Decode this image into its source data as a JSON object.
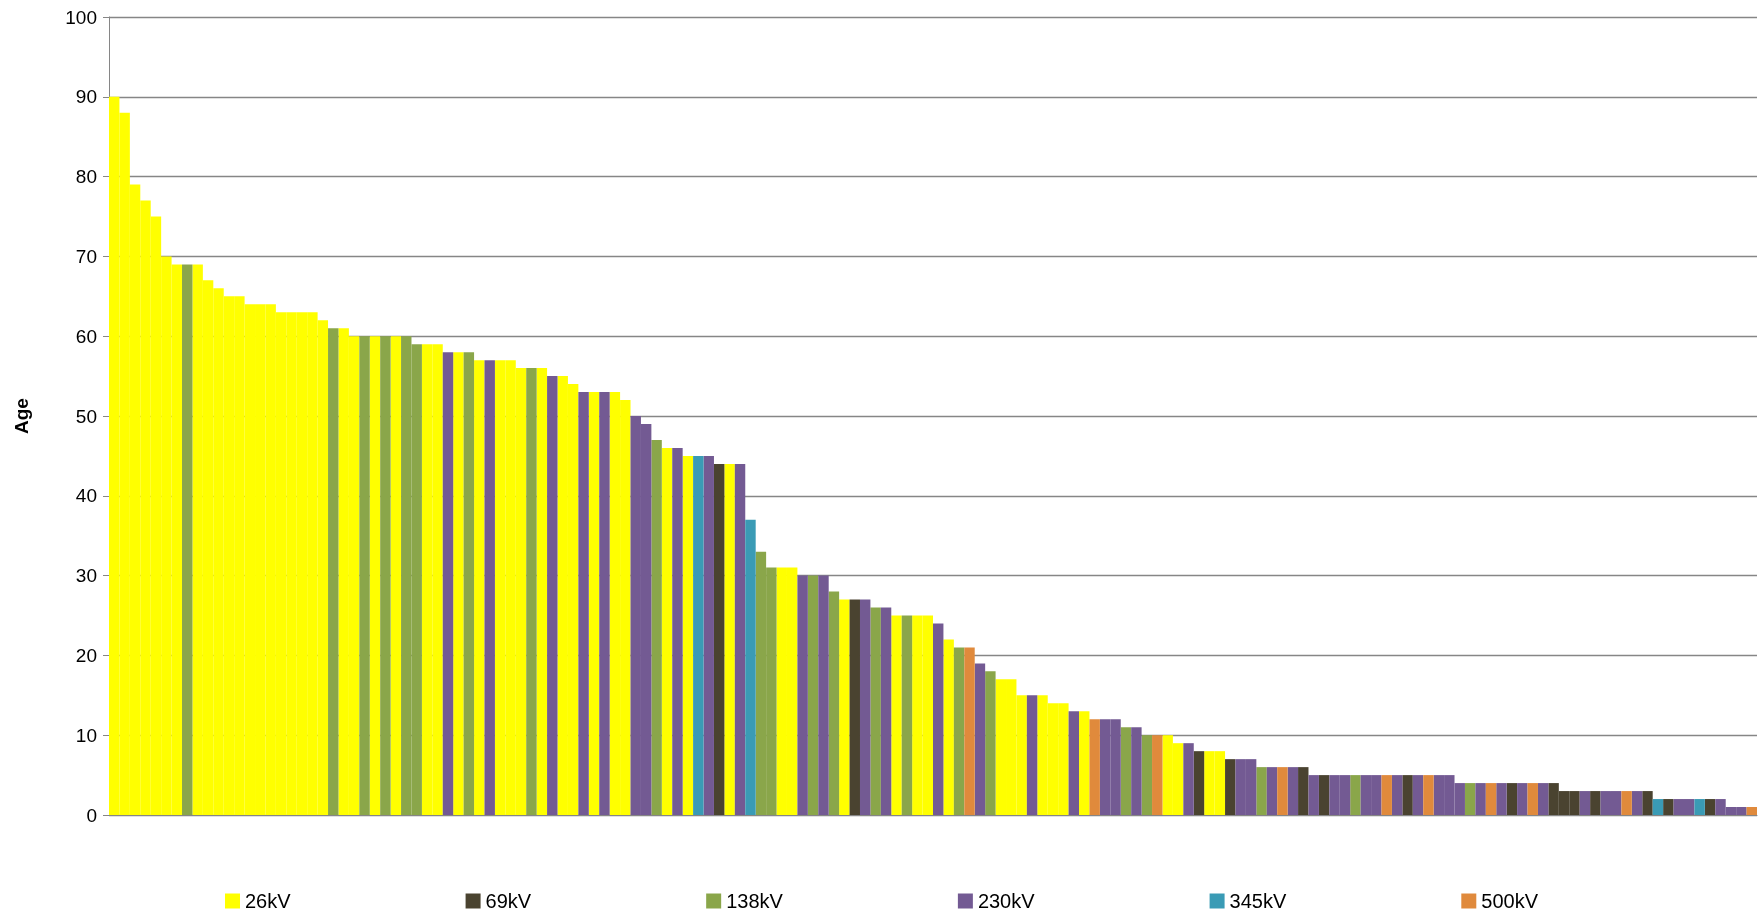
{
  "chart_data": {
    "type": "bar",
    "ylabel": "Age",
    "ylim": [
      0,
      100
    ],
    "yticks": [
      0,
      10,
      20,
      30,
      40,
      50,
      60,
      70,
      80,
      90,
      100
    ],
    "grid": "y",
    "legend": "bottom",
    "categories": [
      null,
      null,
      null,
      null,
      null,
      null,
      null,
      null,
      null,
      null,
      null,
      null,
      null,
      null,
      null,
      null,
      null,
      null,
      null,
      null,
      null,
      null,
      null,
      null,
      null,
      null,
      null,
      null,
      null,
      null,
      null,
      null,
      null,
      null,
      null,
      null,
      null,
      null,
      null,
      null,
      null,
      null,
      null,
      null,
      null,
      null,
      null,
      null,
      null,
      null,
      null,
      null,
      null,
      null,
      null,
      null,
      null,
      null,
      null,
      null,
      null,
      null,
      null,
      null,
      null,
      null,
      null,
      null,
      null,
      null,
      null,
      null,
      null,
      null,
      null,
      null,
      null,
      null,
      null,
      null,
      null,
      null,
      null,
      null,
      null,
      null,
      null,
      null,
      null,
      null,
      null,
      null,
      null,
      null,
      null,
      null,
      null,
      null,
      null,
      null,
      null,
      null,
      null,
      null,
      null,
      null,
      null,
      null,
      null,
      null,
      null,
      null,
      null,
      null,
      null,
      null,
      null,
      null,
      null,
      null,
      null,
      null,
      null,
      null,
      null,
      null,
      null,
      null,
      null,
      null,
      null,
      null,
      null,
      null,
      null,
      null,
      null,
      null,
      null,
      null,
      null,
      null,
      null,
      null,
      null,
      null,
      null,
      null,
      null,
      null,
      null,
      null,
      null,
      null,
      null,
      null,
      null,
      null
    ],
    "series": [
      {
        "name": "26kV",
        "color": "#ffff00",
        "values": [
          90,
          88,
          79,
          77,
          75,
          70,
          69,
          null,
          69,
          67,
          66,
          65,
          65,
          64,
          64,
          64,
          63,
          63,
          63,
          63,
          62,
          null,
          61,
          60,
          null,
          60,
          null,
          60,
          null,
          null,
          59,
          59,
          null,
          58,
          null,
          57,
          null,
          57,
          57,
          56,
          null,
          56,
          null,
          55,
          54,
          null,
          53,
          null,
          53,
          52,
          null,
          null,
          null,
          46,
          null,
          45,
          null,
          null,
          null,
          44,
          null,
          null,
          null,
          null,
          31,
          31,
          null,
          null,
          null,
          null,
          27,
          null,
          null,
          null,
          null,
          25,
          null,
          25,
          25,
          null,
          22,
          null,
          null,
          null,
          null,
          17,
          17,
          15,
          null,
          15,
          14,
          14,
          null,
          13,
          null,
          null,
          null,
          null,
          null,
          null,
          null,
          10,
          9,
          null,
          null,
          8,
          8,
          null,
          null,
          null,
          null,
          null,
          null,
          null,
          null,
          null,
          null,
          null,
          null,
          null,
          null,
          null,
          null,
          null,
          null,
          null,
          null,
          null,
          null,
          null,
          null,
          null,
          null,
          null,
          null,
          null,
          null,
          null,
          null,
          null,
          null,
          null,
          null,
          null,
          null,
          null,
          null,
          null,
          null,
          null,
          null,
          null,
          null,
          null,
          null,
          null,
          null,
          null
        ]
      },
      {
        "name": "69kV",
        "color": "#4a4330",
        "values": [
          null,
          null,
          null,
          null,
          null,
          null,
          null,
          null,
          null,
          null,
          null,
          null,
          null,
          null,
          null,
          null,
          null,
          null,
          null,
          null,
          null,
          null,
          null,
          null,
          null,
          null,
          null,
          null,
          null,
          null,
          null,
          null,
          null,
          null,
          null,
          null,
          null,
          null,
          null,
          null,
          null,
          null,
          null,
          null,
          null,
          null,
          null,
          null,
          null,
          null,
          null,
          null,
          null,
          null,
          null,
          null,
          null,
          null,
          44,
          null,
          null,
          null,
          null,
          null,
          null,
          null,
          null,
          null,
          null,
          null,
          null,
          27,
          null,
          null,
          null,
          null,
          null,
          null,
          null,
          null,
          null,
          null,
          null,
          null,
          null,
          null,
          null,
          null,
          null,
          null,
          null,
          null,
          null,
          null,
          null,
          null,
          null,
          null,
          null,
          null,
          null,
          null,
          null,
          null,
          8,
          null,
          null,
          7,
          null,
          null,
          null,
          null,
          null,
          null,
          6,
          null,
          5,
          null,
          null,
          null,
          null,
          null,
          null,
          null,
          5,
          null,
          null,
          null,
          null,
          null,
          null,
          null,
          null,
          null,
          4,
          null,
          null,
          null,
          4,
          3,
          3,
          null,
          3,
          null,
          null,
          null,
          null,
          3,
          null,
          2,
          null,
          null,
          null,
          2,
          null,
          null,
          null,
          null
        ]
      },
      {
        "name": "138kV",
        "color": "#8aa64a",
        "values": [
          null,
          null,
          null,
          null,
          null,
          null,
          null,
          69,
          null,
          null,
          null,
          null,
          null,
          null,
          null,
          null,
          null,
          null,
          null,
          null,
          null,
          61,
          null,
          null,
          60,
          null,
          60,
          null,
          60,
          59,
          null,
          null,
          null,
          null,
          58,
          null,
          null,
          null,
          null,
          null,
          56,
          null,
          null,
          null,
          null,
          null,
          null,
          null,
          null,
          null,
          null,
          null,
          47,
          null,
          null,
          null,
          null,
          null,
          null,
          null,
          null,
          null,
          33,
          31,
          null,
          null,
          null,
          30,
          null,
          28,
          null,
          null,
          null,
          26,
          null,
          null,
          25,
          null,
          null,
          null,
          null,
          21,
          null,
          null,
          18,
          null,
          null,
          null,
          null,
          null,
          null,
          null,
          null,
          null,
          null,
          null,
          null,
          11,
          null,
          10,
          null,
          null,
          null,
          null,
          null,
          null,
          null,
          null,
          null,
          null,
          6,
          null,
          null,
          null,
          null,
          null,
          null,
          null,
          null,
          5,
          null,
          null,
          null,
          null,
          null,
          null,
          null,
          null,
          null,
          null,
          4,
          null,
          null,
          null,
          null,
          null,
          null,
          null,
          null,
          null,
          null,
          null,
          null,
          null,
          null,
          null,
          null,
          null,
          null,
          null,
          null,
          null,
          null,
          null,
          null,
          null,
          null,
          null
        ]
      },
      {
        "name": "230kV",
        "color": "#735a93",
        "values": [
          null,
          null,
          null,
          null,
          null,
          null,
          null,
          null,
          null,
          null,
          null,
          null,
          null,
          null,
          null,
          null,
          null,
          null,
          null,
          null,
          null,
          null,
          null,
          null,
          null,
          null,
          null,
          null,
          null,
          null,
          null,
          null,
          58,
          null,
          null,
          null,
          57,
          null,
          null,
          null,
          null,
          null,
          55,
          null,
          null,
          53,
          null,
          53,
          null,
          null,
          50,
          49,
          null,
          null,
          46,
          null,
          null,
          45,
          null,
          null,
          44,
          null,
          null,
          null,
          null,
          null,
          30,
          null,
          30,
          null,
          null,
          null,
          27,
          null,
          26,
          null,
          null,
          null,
          null,
          24,
          null,
          null,
          null,
          19,
          null,
          null,
          null,
          null,
          15,
          null,
          null,
          null,
          13,
          null,
          null,
          12,
          12,
          null,
          11,
          null,
          null,
          null,
          null,
          9,
          null,
          null,
          null,
          null,
          7,
          7,
          null,
          6,
          null,
          6,
          null,
          5,
          null,
          5,
          5,
          null,
          5,
          5,
          null,
          5,
          null,
          5,
          null,
          5,
          5,
          4,
          null,
          4,
          null,
          4,
          null,
          4,
          null,
          4,
          null,
          null,
          null,
          3,
          null,
          3,
          3,
          null,
          3,
          null,
          null,
          null,
          2,
          2,
          null,
          null,
          2,
          1,
          1,
          null
        ]
      },
      {
        "name": "345kV",
        "color": "#3a9bb5",
        "values": [
          null,
          null,
          null,
          null,
          null,
          null,
          null,
          null,
          null,
          null,
          null,
          null,
          null,
          null,
          null,
          null,
          null,
          null,
          null,
          null,
          null,
          null,
          null,
          null,
          null,
          null,
          null,
          null,
          null,
          null,
          null,
          null,
          null,
          null,
          null,
          null,
          null,
          null,
          null,
          null,
          null,
          null,
          null,
          null,
          null,
          null,
          null,
          null,
          null,
          null,
          null,
          null,
          null,
          null,
          null,
          null,
          45,
          null,
          null,
          null,
          null,
          37,
          null,
          null,
          null,
          null,
          null,
          null,
          null,
          null,
          null,
          null,
          null,
          null,
          null,
          null,
          null,
          null,
          null,
          null,
          null,
          null,
          null,
          null,
          null,
          null,
          null,
          null,
          null,
          null,
          null,
          null,
          null,
          null,
          null,
          null,
          null,
          null,
          null,
          null,
          null,
          null,
          null,
          null,
          null,
          null,
          null,
          null,
          null,
          null,
          null,
          null,
          null,
          null,
          null,
          null,
          null,
          null,
          null,
          null,
          null,
          null,
          null,
          null,
          null,
          null,
          null,
          null,
          null,
          null,
          null,
          null,
          null,
          null,
          null,
          null,
          null,
          null,
          null,
          null,
          null,
          null,
          null,
          null,
          null,
          null,
          null,
          null,
          2,
          null,
          null,
          null,
          2,
          null,
          null,
          null,
          null,
          null
        ]
      },
      {
        "name": "500kV",
        "color": "#e08a3c",
        "values": [
          null,
          null,
          null,
          null,
          null,
          null,
          null,
          null,
          null,
          null,
          null,
          null,
          null,
          null,
          null,
          null,
          null,
          null,
          null,
          null,
          null,
          null,
          null,
          null,
          null,
          null,
          null,
          null,
          null,
          null,
          null,
          null,
          null,
          null,
          null,
          null,
          null,
          null,
          null,
          null,
          null,
          null,
          null,
          null,
          null,
          null,
          null,
          null,
          null,
          null,
          null,
          null,
          null,
          null,
          null,
          null,
          null,
          null,
          null,
          null,
          null,
          null,
          null,
          null,
          null,
          null,
          null,
          null,
          null,
          null,
          null,
          null,
          null,
          null,
          null,
          null,
          null,
          null,
          null,
          null,
          null,
          null,
          21,
          null,
          null,
          null,
          null,
          null,
          null,
          null,
          null,
          null,
          null,
          null,
          12,
          null,
          null,
          null,
          null,
          null,
          10,
          null,
          null,
          null,
          null,
          null,
          null,
          null,
          null,
          null,
          null,
          null,
          6,
          null,
          null,
          null,
          null,
          null,
          null,
          null,
          null,
          null,
          5,
          null,
          null,
          null,
          5,
          null,
          null,
          null,
          null,
          null,
          4,
          null,
          null,
          null,
          4,
          null,
          null,
          null,
          null,
          null,
          null,
          null,
          null,
          3,
          null,
          null,
          null,
          null,
          null,
          null,
          null,
          null,
          null,
          null,
          null,
          1
        ]
      }
    ]
  }
}
